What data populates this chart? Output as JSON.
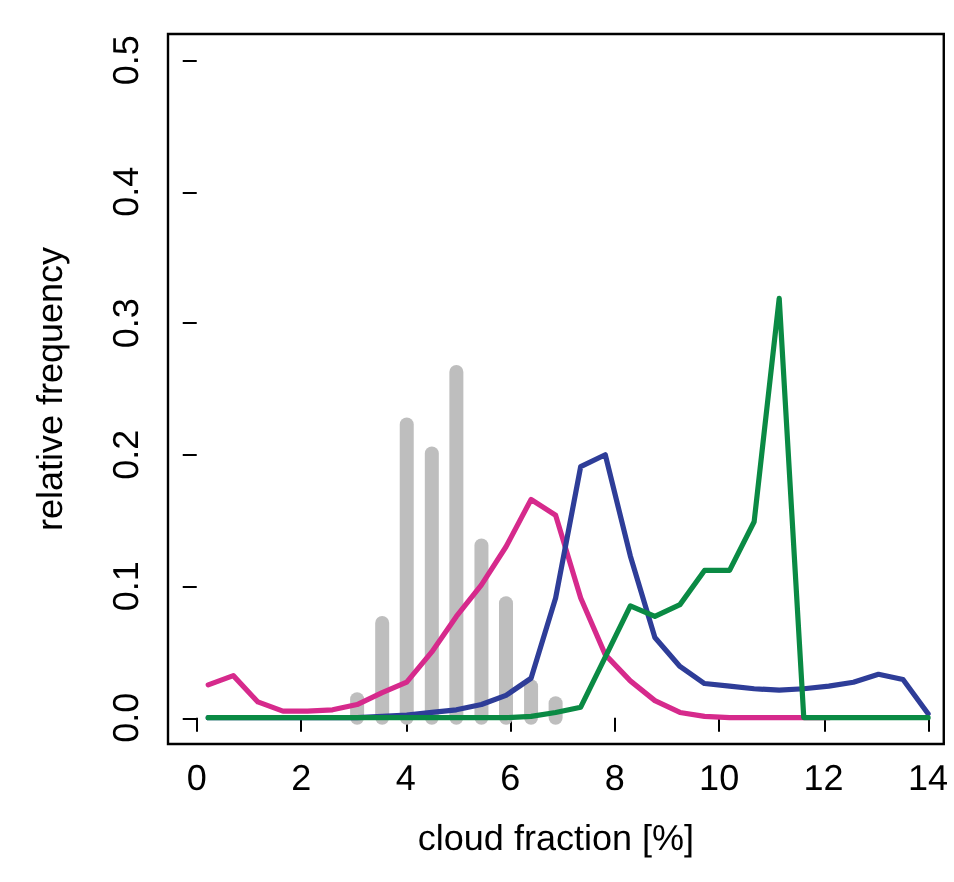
{
  "chart_data": {
    "type": "line",
    "xlabel": "cloud fraction [%]",
    "ylabel": "relative frequency",
    "x": [
      0.22,
      0.7,
      1.17,
      1.65,
      2.12,
      2.6,
      3.07,
      3.55,
      4.02,
      4.5,
      4.97,
      5.45,
      5.92,
      6.4,
      6.87,
      7.35,
      7.82,
      8.3,
      8.77,
      9.25,
      9.72,
      10.2,
      10.67,
      11.15,
      11.62,
      12.1,
      12.57,
      13.05,
      13.52,
      14.0
    ],
    "series": [
      {
        "type": "bar",
        "color": "#bebebe",
        "values": [
          0,
          0,
          0,
          0,
          0,
          0,
          0.014,
          0.072,
          0.223,
          0.201,
          0.263,
          0.131,
          0.087,
          0.024,
          0.011,
          0,
          0,
          0,
          0,
          0,
          0,
          0,
          0,
          0,
          0,
          0,
          0,
          0,
          0,
          0
        ]
      },
      {
        "color": "#d62a8c",
        "values": [
          0.025,
          0.032,
          0.012,
          0.005,
          0.005,
          0.006,
          0.01,
          0.019,
          0.027,
          0.05,
          0.077,
          0.101,
          0.13,
          0.166,
          0.154,
          0.091,
          0.048,
          0.028,
          0.013,
          0.004,
          0.001,
          0,
          0,
          0,
          0,
          0,
          null,
          null,
          null,
          null
        ]
      },
      {
        "color": "#2e3d98",
        "values": [
          0,
          0,
          0,
          0,
          0,
          0,
          0,
          0.001,
          0.002,
          0.004,
          0.006,
          0.01,
          0.017,
          0.03,
          0.091,
          0.191,
          0.2,
          0.123,
          0.061,
          0.039,
          0.026,
          0.024,
          0.022,
          0.021,
          0.022,
          0.024,
          0.027,
          0.033,
          0.029,
          0.003
        ]
      },
      {
        "color": "#0a8a44",
        "values": [
          0,
          0,
          0,
          0,
          0,
          0,
          0,
          0,
          0,
          0,
          0,
          0,
          0,
          0.001,
          0.004,
          0.008,
          0.046,
          0.085,
          0.077,
          0.086,
          0.112,
          0.112,
          0.149,
          0.319,
          0,
          0,
          0,
          0,
          0,
          0
        ]
      }
    ],
    "xlim": [
      -0.55,
      14.3
    ],
    "xticks": [
      0,
      2,
      4,
      6,
      8,
      10,
      12,
      14
    ],
    "ylim": [
      -0.02,
      0.52
    ],
    "yticks": [
      {
        "value": 0,
        "label": "0.0"
      },
      {
        "value": 0.1,
        "label": "0.1"
      },
      {
        "value": 0.2,
        "label": "0.2"
      },
      {
        "value": 0.3,
        "label": "0.3"
      },
      {
        "value": 0.4,
        "label": "0.4"
      },
      {
        "value": 0.5,
        "label": "0.5"
      }
    ],
    "grid": false,
    "marker": "none",
    "line_style": "solid"
  }
}
